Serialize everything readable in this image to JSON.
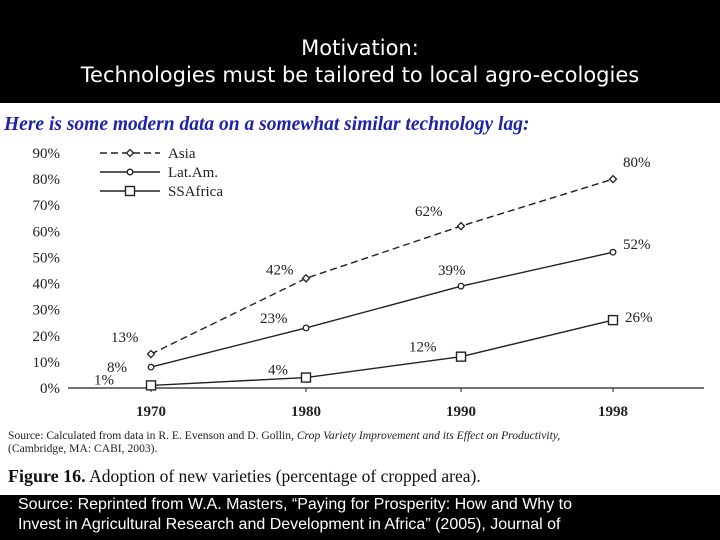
{
  "slide": {
    "title_line1": "Motivation:",
    "title_line2": "Technologies must be tailored to local agro-ecologies",
    "subtitle": "Here is some modern data on a somewhat similar technology lag:",
    "footer_line1": "Source: Reprinted from W.A. Masters, “Paying for Prosperity: How and Why to",
    "footer_line2": "Invest in Agricultural Research and Development in Africa” (2005), Journal of"
  },
  "figure": {
    "source_prefix": "Source: Calculated from data in R. E. Evenson and D. Gollin, ",
    "source_book": "Crop Variety Improvement and its Effect on Productivity,",
    "source_suffix": "(Cambridge, MA: CABI, 2003).",
    "caption_label": "Figure 16.",
    "caption_text": " Adoption of new varieties (percentage of cropped area)."
  },
  "colors": {
    "title_text": "#ffffff",
    "background": "#000000",
    "subtitle_text": "#1d24a8",
    "chart_ink": "#222222"
  },
  "chart_data": {
    "type": "line",
    "title": "",
    "xlabel": "",
    "ylabel": "",
    "categories": [
      "1970",
      "1980",
      "1990",
      "1998"
    ],
    "ylim": [
      0,
      90
    ],
    "y_ticks": [
      "0%",
      "10%",
      "20%",
      "30%",
      "40%",
      "50%",
      "60%",
      "70%",
      "80%",
      "90%"
    ],
    "grid": false,
    "legend_position": "top-left",
    "series": [
      {
        "name": "Asia",
        "values": [
          13,
          42,
          62,
          80
        ],
        "labels": [
          "13%",
          "42%",
          "62%",
          "80%"
        ],
        "line": "dashed",
        "marker": "diamond"
      },
      {
        "name": "Lat.Am.",
        "values": [
          8,
          23,
          39,
          52
        ],
        "labels": [
          "8%",
          "23%",
          "39%",
          "52%"
        ],
        "line": "solid",
        "marker": "dot"
      },
      {
        "name": "SSAfrica",
        "values": [
          1,
          4,
          12,
          26
        ],
        "labels": [
          "1%",
          "4%",
          "12%",
          "26%"
        ],
        "line": "solid",
        "marker": "square"
      }
    ]
  }
}
